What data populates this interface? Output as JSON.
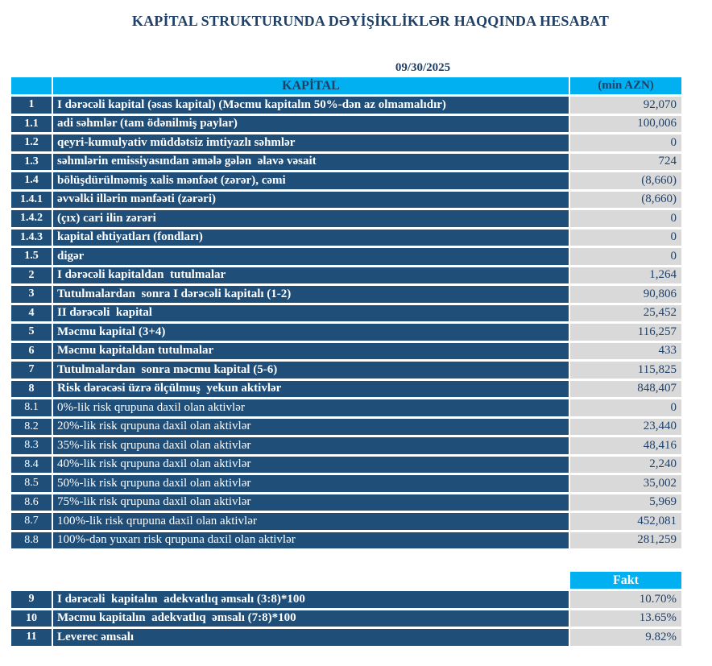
{
  "title": "KAPİTAL STRUKTURUNDA DƏYİŞİKLİKLƏR HAQQINDA HESABAT",
  "report_date": "09/30/2025",
  "colors": {
    "header_cyan": "#00B0F0",
    "row_navy": "#1F4E79",
    "value_cell_gray": "#D9D9D9",
    "text_navy": "#1F4068"
  },
  "capital_table": {
    "header": {
      "corner": "",
      "label": "KAPİTAL",
      "unit": "(min AZN)"
    },
    "rows": [
      {
        "no": "1",
        "label": "I dərəcəli kapital (əsas kapital) (Məcmu kapitalın 50%-dən az olmamalıdır)",
        "value": "92,070",
        "bold": true
      },
      {
        "no": "1.1",
        "label": "adi səhmlər (tam ödənilmiş paylar)",
        "value": "100,006",
        "bold": true
      },
      {
        "no": "1.2",
        "label": "qeyri-kumulyativ müddətsiz imtiyazlı səhmlər",
        "value": "0",
        "bold": true
      },
      {
        "no": "1.3",
        "label": "səhmlərin emissiyasından əmələ gələn  əlavə vəsait",
        "value": "724",
        "bold": true
      },
      {
        "no": "1.4",
        "label": "bölüşdürülməmiş xalis mənfəət (zərər), cəmi",
        "value": "(8,660)",
        "bold": true
      },
      {
        "no": "1.4.1",
        "label": "əvvəlki illərin mənfəəti (zərəri)",
        "value": "(8,660)",
        "bold": true
      },
      {
        "no": "1.4.2",
        "label": "(çıx) cari ilin zərəri",
        "value": "0",
        "bold": true
      },
      {
        "no": "1.4.3",
        "label": "kapital ehtiyatları (fondları)",
        "value": "0",
        "bold": true
      },
      {
        "no": "1.5",
        "label": "digər",
        "value": "0",
        "bold": true
      },
      {
        "no": "2",
        "label": "I dərəcəli kapitaldan  tutulmalar",
        "value": "1,264",
        "bold": true
      },
      {
        "no": "3",
        "label": "Tutulmalardan  sonra I dərəcəli kapitalı (1-2)",
        "value": "90,806",
        "bold": true
      },
      {
        "no": "4",
        "label": "II dərəcəli  kapital",
        "value": "25,452",
        "bold": true
      },
      {
        "no": "5",
        "label": "Məcmu kapital (3+4)",
        "value": "116,257",
        "bold": true
      },
      {
        "no": "6",
        "label": "Məcmu kapitaldan tutulmalar",
        "value": "433",
        "bold": true
      },
      {
        "no": "7",
        "label": "Tutulmalardan  sonra məcmu kapital (5-6)",
        "value": "115,825",
        "bold": true
      },
      {
        "no": "8",
        "label": "Risk dərəcəsi üzrə ölçülmuş  yekun aktivlər",
        "value": "848,407",
        "bold": true
      },
      {
        "no": "8.1",
        "label": "0%-lik risk qrupuna daxil olan aktivlər",
        "value": "0",
        "bold": false
      },
      {
        "no": "8.2",
        "label": "20%-lik risk qrupuna daxil olan aktivlər",
        "value": "23,440",
        "bold": false
      },
      {
        "no": "8.3",
        "label": "35%-lik risk qrupuna daxil olan aktivlər",
        "value": "48,416",
        "bold": false
      },
      {
        "no": "8.4",
        "label": "40%-lik risk qrupuna daxil olan aktivlər",
        "value": "2,240",
        "bold": false
      },
      {
        "no": "8.5",
        "label": "50%-lik risk qrupuna daxil olan aktivlər",
        "value": "35,002",
        "bold": false
      },
      {
        "no": "8.6",
        "label": "75%-lik risk qrupuna daxil olan aktivlər",
        "value": "5,969",
        "bold": false
      },
      {
        "no": "8.7",
        "label": "100%-lik risk qrupuna daxil olan aktivlər",
        "value": "452,081",
        "bold": false
      },
      {
        "no": "8.8",
        "label": "100%-dən yuxarı risk qrupuna daxil olan aktivlər",
        "value": "281,259",
        "bold": false
      }
    ]
  },
  "ratio_table": {
    "header": {
      "fakt": "Fakt"
    },
    "rows": [
      {
        "no": "9",
        "label": "I dərəcəli  kapitalın  adekvatlıq əmsalı (3:8)*100",
        "value": "10.70%",
        "bold": true
      },
      {
        "no": "10",
        "label": "Məcmu kapitalın  adekvatlıq  əmsalı (7:8)*100",
        "value": "13.65%",
        "bold": true
      },
      {
        "no": "11",
        "label": "Leverec əmsalı",
        "value": "9.82%",
        "bold": true
      }
    ]
  }
}
